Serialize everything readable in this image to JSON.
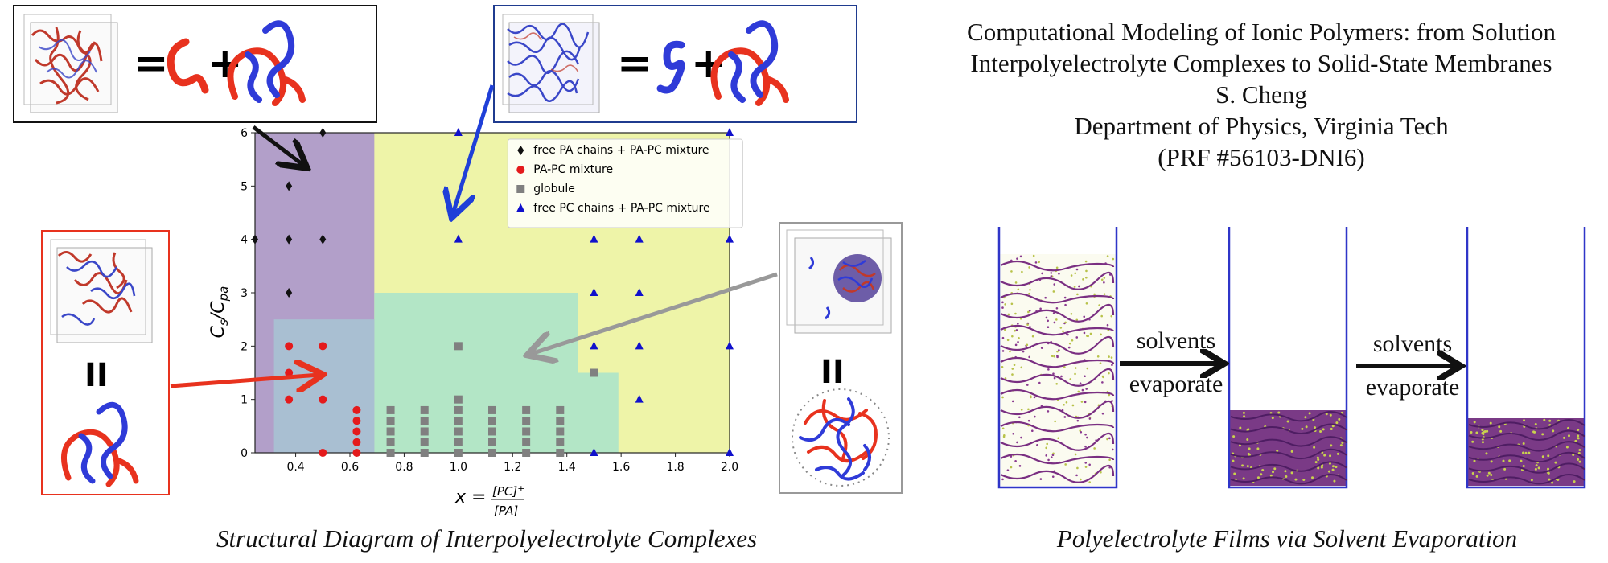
{
  "header": {
    "title_line1": "Computational Modeling of Ionic Polymers: from Solution",
    "title_line2": "Interpolyelectrolyte Complexes to Solid-State Membranes",
    "author": "S. Cheng",
    "affiliation": "Department of Physics, Virginia Tech",
    "grant": "(PRF #56103-DNI6)"
  },
  "captions": {
    "left": "Structural Diagram of Interpolyelectrolyte Complexes",
    "right": "Polyelectrolyte Films via Solvent Evaporation"
  },
  "symbols": {
    "equals": "=",
    "plus": "+",
    "parallel": "II"
  },
  "colors": {
    "pa_chain": "#e8321e",
    "pc_chain": "#2f3bd8",
    "purple_region": "#b29fc9",
    "yellow_region": "#eef4a8",
    "green_region": "#b3e6c6",
    "bluegray_region": "#a9bfd2"
  },
  "beaker": {
    "arrow1_top": "solvents",
    "arrow1_bottom": "evaporate",
    "arrow2_top": "solvents",
    "arrow2_bottom": "evaporate"
  },
  "chart_data": {
    "type": "scatter",
    "xlabel": "x = [PC]+/[PA]−",
    "ylabel": "Cs/Cpa",
    "xlim": [
      0.25,
      2.0
    ],
    "ylim": [
      0,
      6
    ],
    "x_ticks": [
      "0.4",
      "0.6",
      "0.8",
      "1.0",
      "1.2",
      "1.4",
      "1.6",
      "1.8",
      "2.0"
    ],
    "y_ticks": [
      "0",
      "1",
      "2",
      "3",
      "4",
      "5",
      "6"
    ],
    "legend": [
      {
        "label": "free PA chains + PA-PC mixture",
        "marker": "diamond",
        "color": "#111111"
      },
      {
        "label": "PA-PC mixture",
        "marker": "circle",
        "color": "#e41a1c"
      },
      {
        "label": "globule",
        "marker": "square",
        "color": "#808080"
      },
      {
        "label": "free PC chains + PA-PC mixture",
        "marker": "triangle",
        "color": "#1010cc"
      }
    ],
    "legend_position": "top-right",
    "series": [
      {
        "name": "free PA chains + PA-PC mixture",
        "points": [
          [
            0.25,
            4
          ],
          [
            0.375,
            5
          ],
          [
            0.375,
            4
          ],
          [
            0.375,
            3
          ],
          [
            0.5,
            6
          ],
          [
            0.5,
            4
          ]
        ]
      },
      {
        "name": "PA-PC mixture",
        "points": [
          [
            0.375,
            2
          ],
          [
            0.375,
            1.5
          ],
          [
            0.375,
            1
          ],
          [
            0.5,
            2
          ],
          [
            0.5,
            1
          ],
          [
            0.5,
            0
          ],
          [
            0.625,
            0.8
          ],
          [
            0.625,
            0.6
          ],
          [
            0.625,
            0.4
          ],
          [
            0.625,
            0.2
          ],
          [
            0.625,
            0
          ]
        ]
      },
      {
        "name": "globule",
        "points": [
          [
            0.75,
            0.8
          ],
          [
            0.75,
            0.6
          ],
          [
            0.75,
            0.4
          ],
          [
            0.75,
            0.2
          ],
          [
            0.75,
            0
          ],
          [
            0.875,
            0.8
          ],
          [
            0.875,
            0.6
          ],
          [
            0.875,
            0.4
          ],
          [
            0.875,
            0.2
          ],
          [
            0.875,
            0
          ],
          [
            1.0,
            2
          ],
          [
            1.0,
            1
          ],
          [
            1.0,
            0.8
          ],
          [
            1.0,
            0.6
          ],
          [
            1.0,
            0.4
          ],
          [
            1.0,
            0.2
          ],
          [
            1.0,
            0
          ],
          [
            1.125,
            0.8
          ],
          [
            1.125,
            0.6
          ],
          [
            1.125,
            0.4
          ],
          [
            1.125,
            0.2
          ],
          [
            1.125,
            0
          ],
          [
            1.25,
            0.8
          ],
          [
            1.25,
            0.6
          ],
          [
            1.25,
            0.4
          ],
          [
            1.25,
            0.2
          ],
          [
            1.25,
            0
          ],
          [
            1.375,
            0.8
          ],
          [
            1.375,
            0.6
          ],
          [
            1.375,
            0.4
          ],
          [
            1.375,
            0.2
          ],
          [
            1.375,
            0
          ],
          [
            1.5,
            1.5
          ]
        ]
      },
      {
        "name": "free PC chains + PA-PC mixture",
        "points": [
          [
            1.0,
            6
          ],
          [
            1.0,
            4
          ],
          [
            1.5,
            4
          ],
          [
            1.5,
            3
          ],
          [
            1.5,
            2
          ],
          [
            1.5,
            0
          ],
          [
            1.667,
            4
          ],
          [
            1.667,
            3
          ],
          [
            1.667,
            2
          ],
          [
            1.667,
            1
          ],
          [
            2.0,
            6
          ],
          [
            2.0,
            4
          ],
          [
            2.0,
            2
          ],
          [
            2.0,
            0
          ]
        ]
      }
    ],
    "regions": [
      {
        "label": "purple",
        "color": "#b29fc9"
      },
      {
        "label": "yellow",
        "color": "#eef4a8"
      },
      {
        "label": "green",
        "color": "#b3e6c6"
      },
      {
        "label": "bluegray",
        "color": "#a9bfd2"
      }
    ]
  }
}
